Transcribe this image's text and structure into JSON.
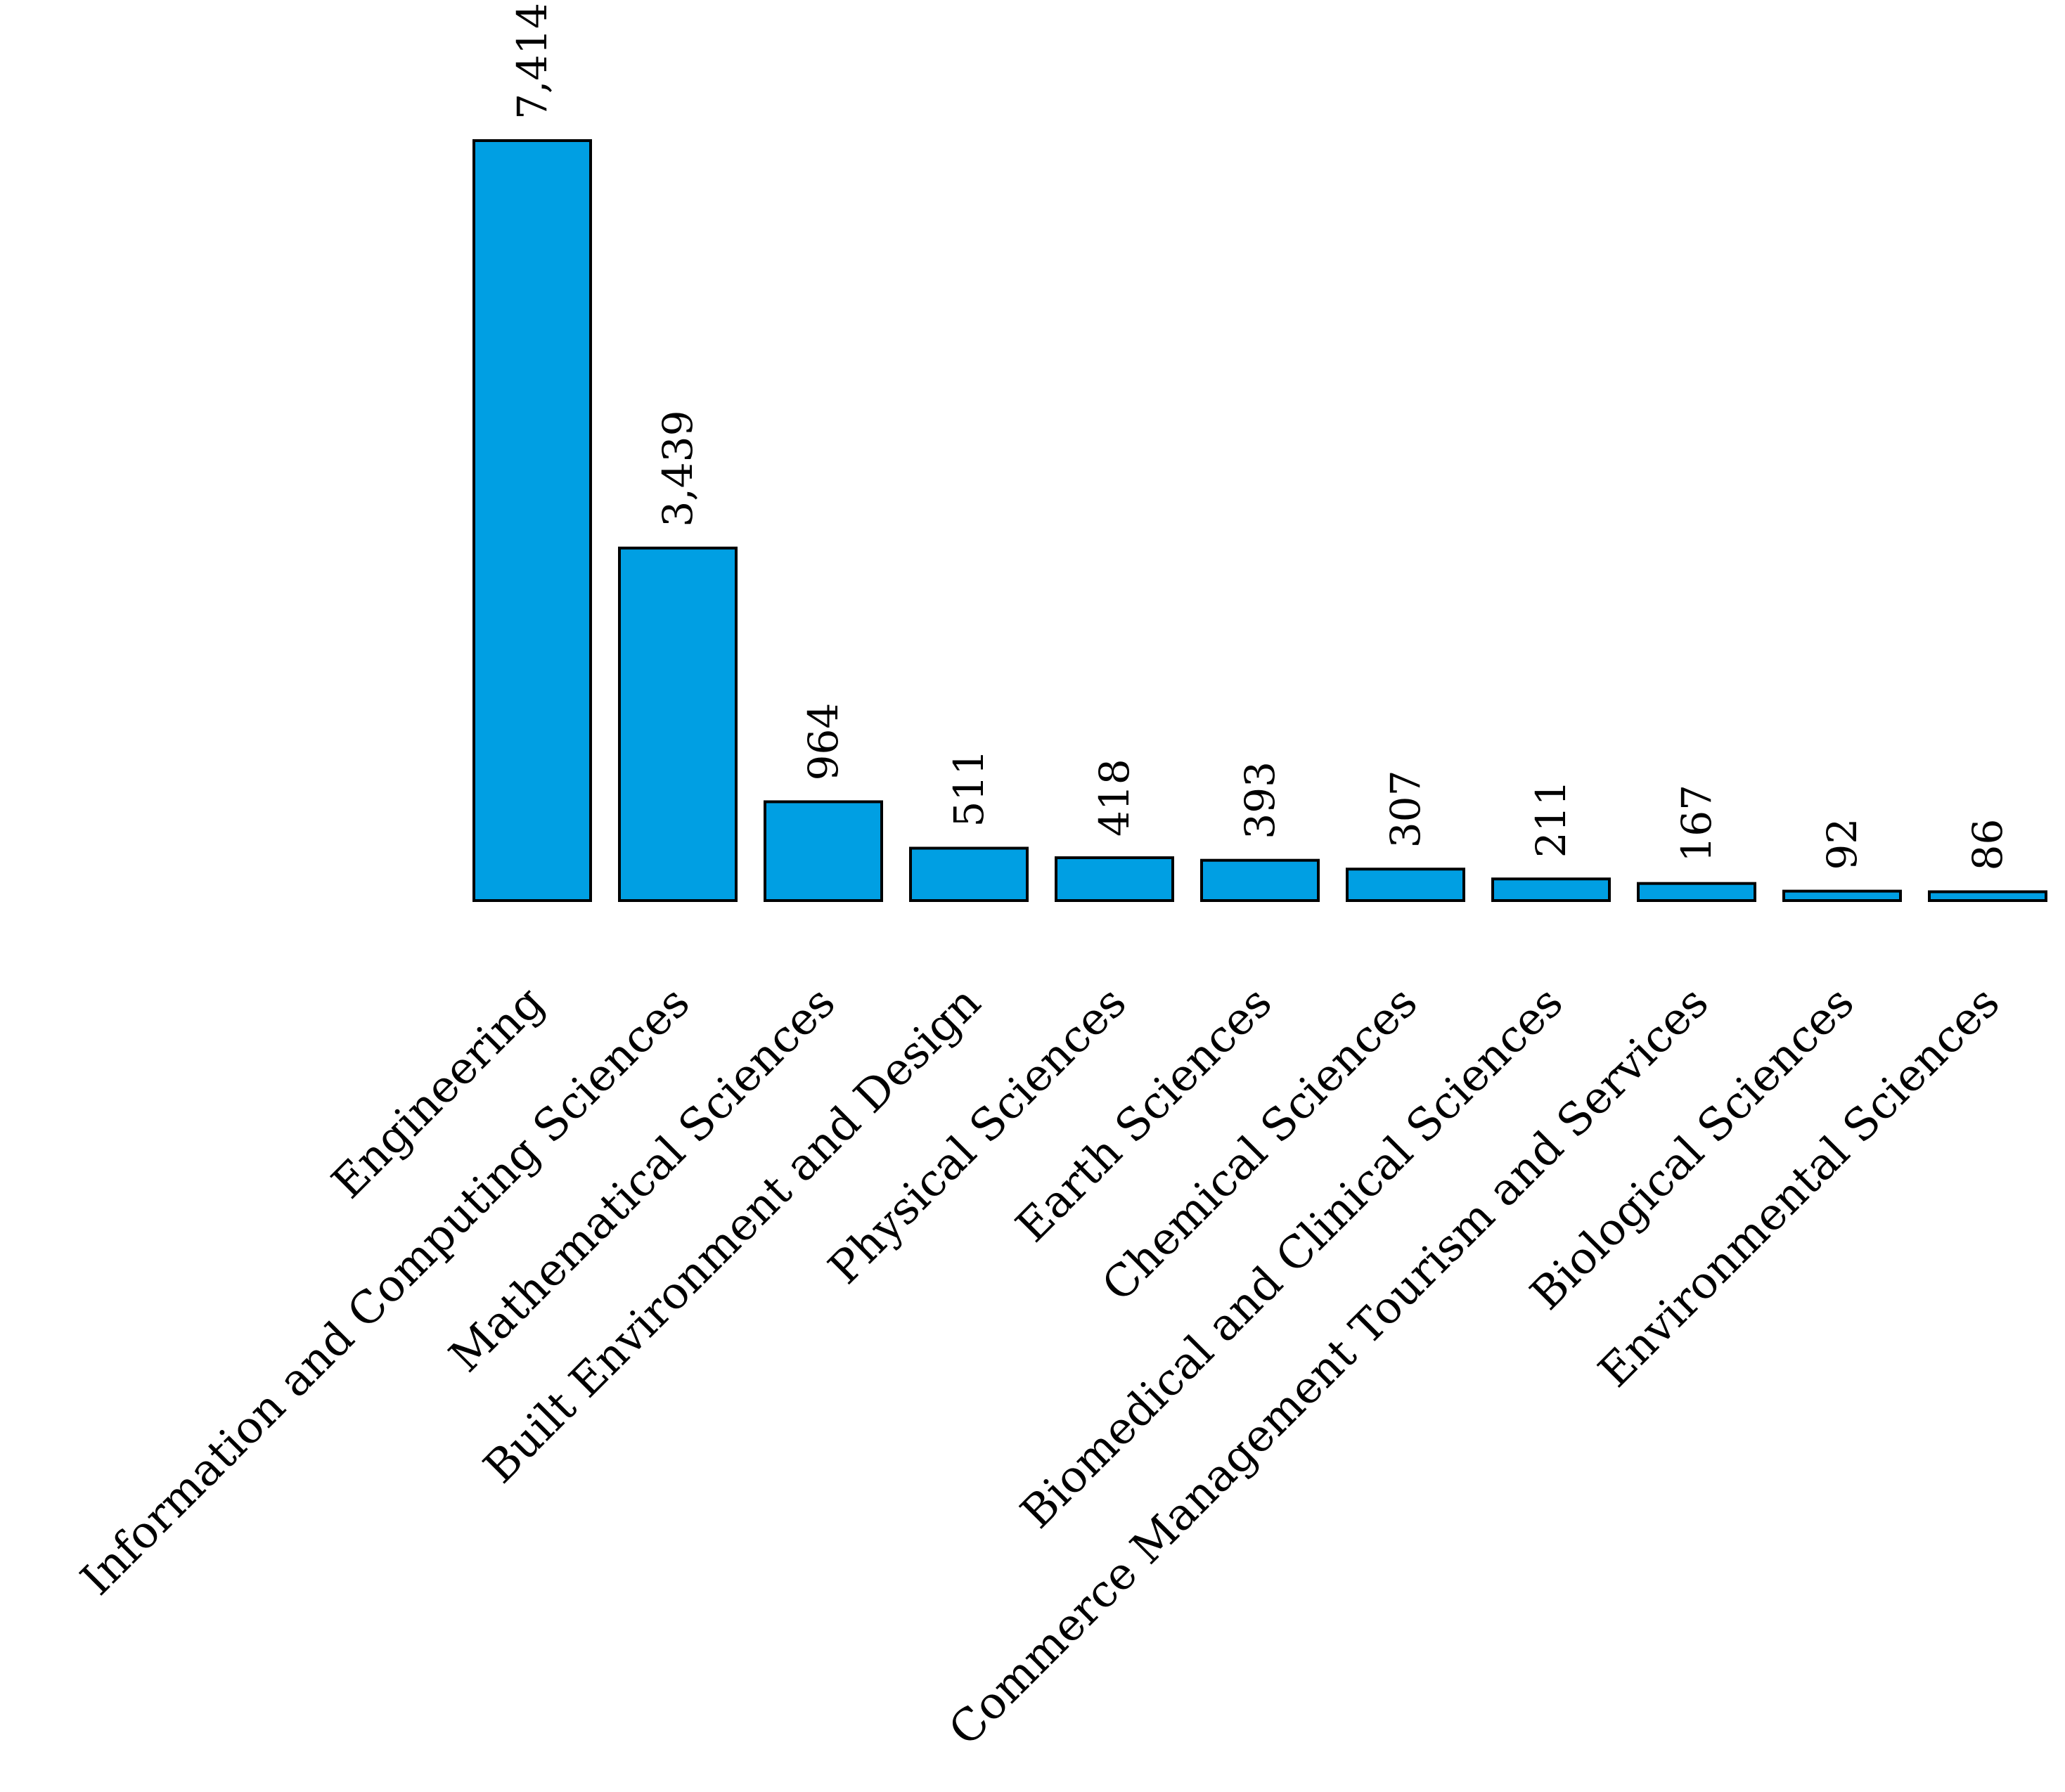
{
  "chart_data": {
    "type": "bar",
    "title": "",
    "xlabel": "",
    "ylabel": "",
    "categories": [
      "Engineering",
      "Information and Computing Sciences",
      "Mathematical Sciences",
      "Built Environment and Design",
      "Physical Sciences",
      "Earth Sciences",
      "Chemical Sciences",
      "Biomedical and Clinical Sciences",
      "Commerce Management Tourism and Services",
      "Biological Sciences",
      "Environmental Sciences"
    ],
    "values": [
      7414,
      3439,
      964,
      511,
      418,
      393,
      307,
      211,
      167,
      92,
      86
    ],
    "value_labels": [
      "7,414",
      "3,439",
      "964",
      "511",
      "418",
      "393",
      "307",
      "211",
      "167",
      "92",
      "86"
    ],
    "ylim": [
      0,
      7414
    ],
    "grid": false,
    "legend": "none",
    "bar_color": "#009fe3",
    "edge_color": "#000000"
  }
}
